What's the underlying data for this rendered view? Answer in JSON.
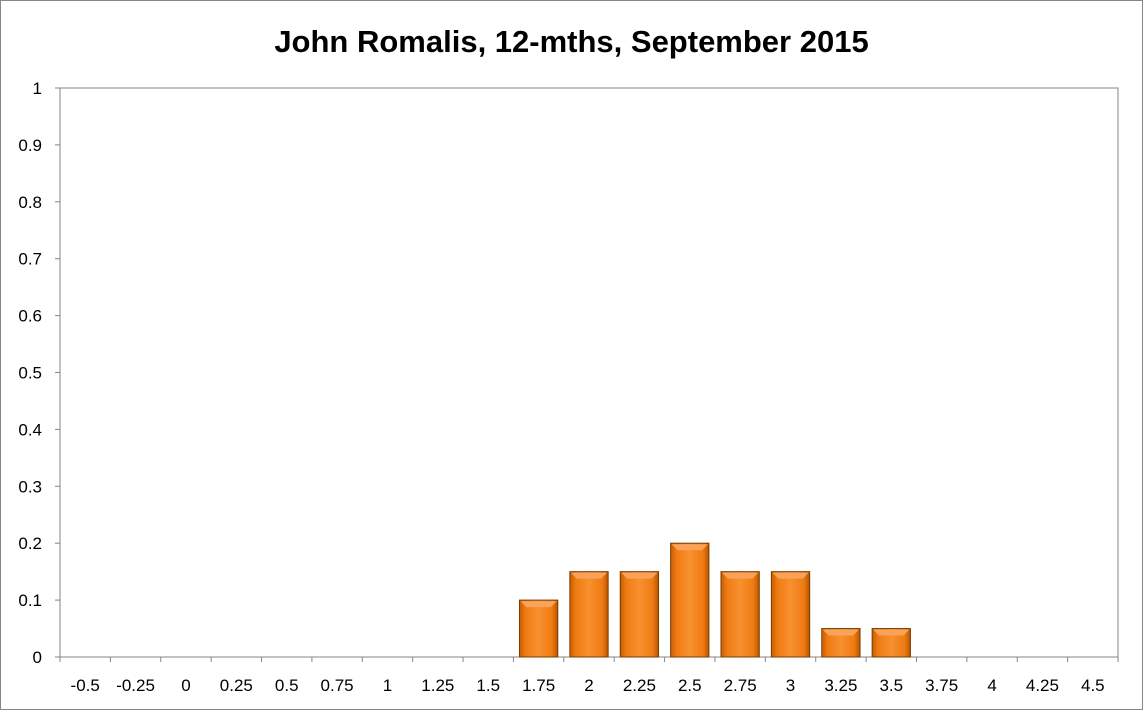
{
  "chart_data": {
    "type": "bar",
    "title": "John Romalis, 12-mths, September 2015",
    "xlabel": "",
    "ylabel": "",
    "categories": [
      "-0.5",
      "-0.25",
      "0",
      "0.25",
      "0.5",
      "0.75",
      "1",
      "1.25",
      "1.5",
      "1.75",
      "2",
      "2.25",
      "2.5",
      "2.75",
      "3",
      "3.25",
      "3.5",
      "3.75",
      "4",
      "4.25",
      "4.5"
    ],
    "series": [
      {
        "values": [
          0,
          0,
          0,
          0,
          0,
          0,
          0,
          0,
          0,
          0.1,
          0.15,
          0.15,
          0.2,
          0.15,
          0.15,
          0.05,
          0.05,
          0,
          0,
          0,
          0
        ]
      }
    ],
    "ylim": [
      0,
      1
    ],
    "yticks": [
      "0",
      "0.1",
      "0.2",
      "0.3",
      "0.4",
      "0.5",
      "0.6",
      "0.7",
      "0.8",
      "0.9",
      "1"
    ],
    "grid": false,
    "legend": "none",
    "colors": {
      "bar": "#F07A12",
      "bar_light": "#F9A35A",
      "bar_dark": "#B85500",
      "bar_edge": "#7A3C00",
      "axis": "#868686"
    }
  }
}
